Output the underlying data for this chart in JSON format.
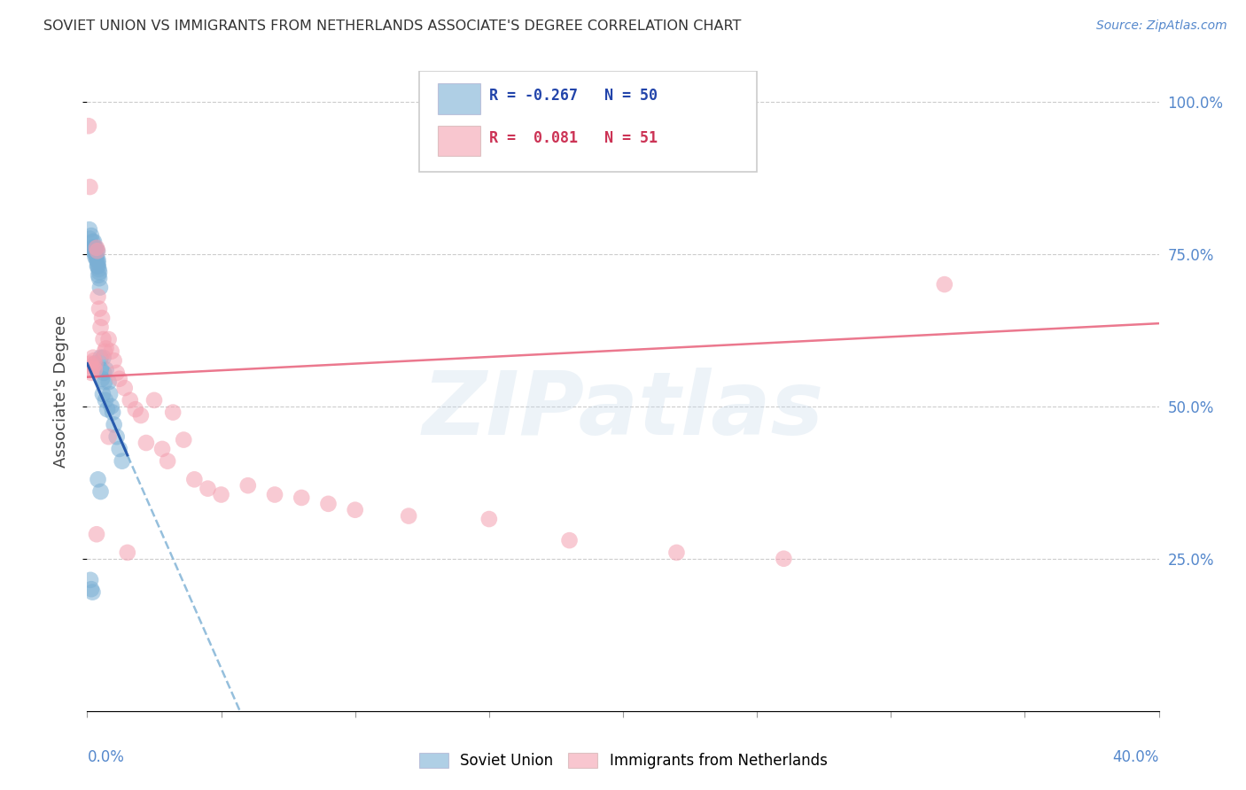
{
  "title": "SOVIET UNION VS IMMIGRANTS FROM NETHERLANDS ASSOCIATE'S DEGREE CORRELATION CHART",
  "source": "Source: ZipAtlas.com",
  "ylabel": "Associate's Degree",
  "watermark": "ZIPatlas",
  "blue_color": "#7bafd4",
  "pink_color": "#f4a0b0",
  "trend_blue_solid": "#2255aa",
  "trend_blue_dash": "#7bafd4",
  "trend_pink": "#e8607a",
  "xlim": [
    0.0,
    0.4
  ],
  "ylim": [
    0.0,
    1.05
  ],
  "sv_x": [
    0.0008,
    0.0009,
    0.0015,
    0.0018,
    0.002,
    0.0022,
    0.0025,
    0.0025,
    0.0028,
    0.003,
    0.003,
    0.003,
    0.0032,
    0.0033,
    0.0035,
    0.0035,
    0.0038,
    0.0038,
    0.004,
    0.004,
    0.004,
    0.0042,
    0.0043,
    0.0045,
    0.0045,
    0.0048,
    0.005,
    0.0052,
    0.0055,
    0.0058,
    0.006,
    0.0062,
    0.0065,
    0.0068,
    0.007,
    0.0075,
    0.008,
    0.0085,
    0.009,
    0.0095,
    0.01,
    0.011,
    0.012,
    0.013,
    0.004,
    0.005,
    0.0012,
    0.0015,
    0.002,
    0.0028
  ],
  "sv_y": [
    0.79,
    0.775,
    0.78,
    0.76,
    0.77,
    0.755,
    0.77,
    0.76,
    0.76,
    0.755,
    0.75,
    0.745,
    0.76,
    0.755,
    0.745,
    0.74,
    0.73,
    0.755,
    0.73,
    0.735,
    0.74,
    0.715,
    0.725,
    0.71,
    0.72,
    0.695,
    0.58,
    0.56,
    0.545,
    0.52,
    0.58,
    0.555,
    0.54,
    0.51,
    0.56,
    0.495,
    0.54,
    0.52,
    0.5,
    0.49,
    0.47,
    0.45,
    0.43,
    0.41,
    0.38,
    0.36,
    0.215,
    0.2,
    0.195,
    0.57
  ],
  "nl_x": [
    0.0005,
    0.001,
    0.0012,
    0.0015,
    0.0018,
    0.002,
    0.0022,
    0.0025,
    0.0028,
    0.003,
    0.0035,
    0.0038,
    0.004,
    0.0045,
    0.005,
    0.0055,
    0.006,
    0.0065,
    0.007,
    0.008,
    0.009,
    0.01,
    0.011,
    0.012,
    0.014,
    0.016,
    0.018,
    0.02,
    0.022,
    0.025,
    0.028,
    0.032,
    0.036,
    0.04,
    0.045,
    0.05,
    0.06,
    0.07,
    0.08,
    0.09,
    0.1,
    0.12,
    0.15,
    0.18,
    0.22,
    0.26,
    0.32,
    0.0035,
    0.008,
    0.015,
    0.03
  ],
  "nl_y": [
    0.96,
    0.86,
    0.57,
    0.555,
    0.56,
    0.565,
    0.58,
    0.575,
    0.56,
    0.57,
    0.76,
    0.755,
    0.68,
    0.66,
    0.63,
    0.645,
    0.61,
    0.59,
    0.595,
    0.61,
    0.59,
    0.575,
    0.555,
    0.545,
    0.53,
    0.51,
    0.495,
    0.485,
    0.44,
    0.51,
    0.43,
    0.49,
    0.445,
    0.38,
    0.365,
    0.355,
    0.37,
    0.355,
    0.35,
    0.34,
    0.33,
    0.32,
    0.315,
    0.28,
    0.26,
    0.25,
    0.7,
    0.29,
    0.45,
    0.26,
    0.41
  ]
}
